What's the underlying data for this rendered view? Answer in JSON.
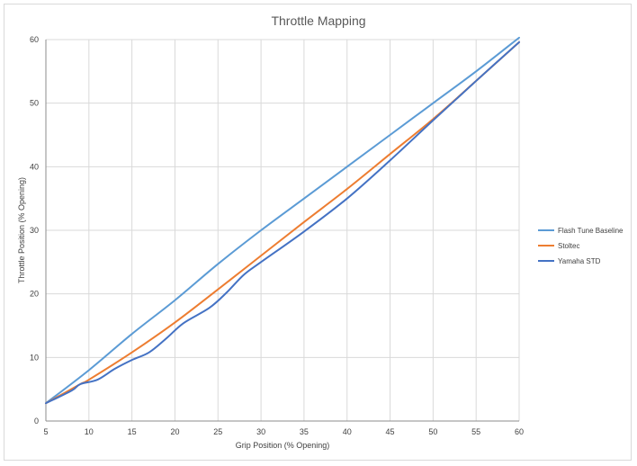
{
  "chart_data": {
    "type": "line",
    "title": "Throttle Mapping",
    "xlabel": "Grip Position (% Opening)",
    "ylabel": "Throttle Position (% Opening)",
    "xlim": [
      5,
      60
    ],
    "ylim": [
      0,
      60
    ],
    "xticks": [
      5,
      10,
      15,
      20,
      25,
      30,
      35,
      40,
      45,
      50,
      55,
      60
    ],
    "yticks": [
      0,
      10,
      20,
      30,
      40,
      50,
      60
    ],
    "grid": true,
    "legend_position": "right",
    "series": [
      {
        "name": "Flash Tune Baseline",
        "color": "#5b9bd5",
        "x": [
          5,
          10,
          15,
          20,
          25,
          30,
          35,
          40,
          45,
          50,
          55,
          60
        ],
        "y": [
          2.8,
          8.0,
          13.7,
          19.0,
          24.7,
          30.0,
          35.0,
          40.0,
          45.0,
          50.0,
          55.0,
          60.3
        ]
      },
      {
        "name": "Stoltec",
        "color": "#ed7d31",
        "x": [
          5,
          9,
          10,
          15,
          20,
          25,
          30,
          35,
          40,
          45,
          50,
          55,
          60
        ],
        "y": [
          2.8,
          5.8,
          6.5,
          10.8,
          15.5,
          20.7,
          26.0,
          31.3,
          36.5,
          42.0,
          47.5,
          53.5,
          59.6
        ]
      },
      {
        "name": "Yamaha STD",
        "color": "#4472c4",
        "x": [
          5,
          8,
          9,
          11,
          13,
          15,
          17,
          19,
          21,
          24,
          26,
          28,
          30,
          35,
          40,
          45,
          50,
          55,
          60
        ],
        "y": [
          2.8,
          4.8,
          5.8,
          6.5,
          8.2,
          9.6,
          10.8,
          13.0,
          15.4,
          17.8,
          20.2,
          23.0,
          25.0,
          29.8,
          35.0,
          41.0,
          47.3,
          53.5,
          59.6
        ]
      }
    ]
  }
}
